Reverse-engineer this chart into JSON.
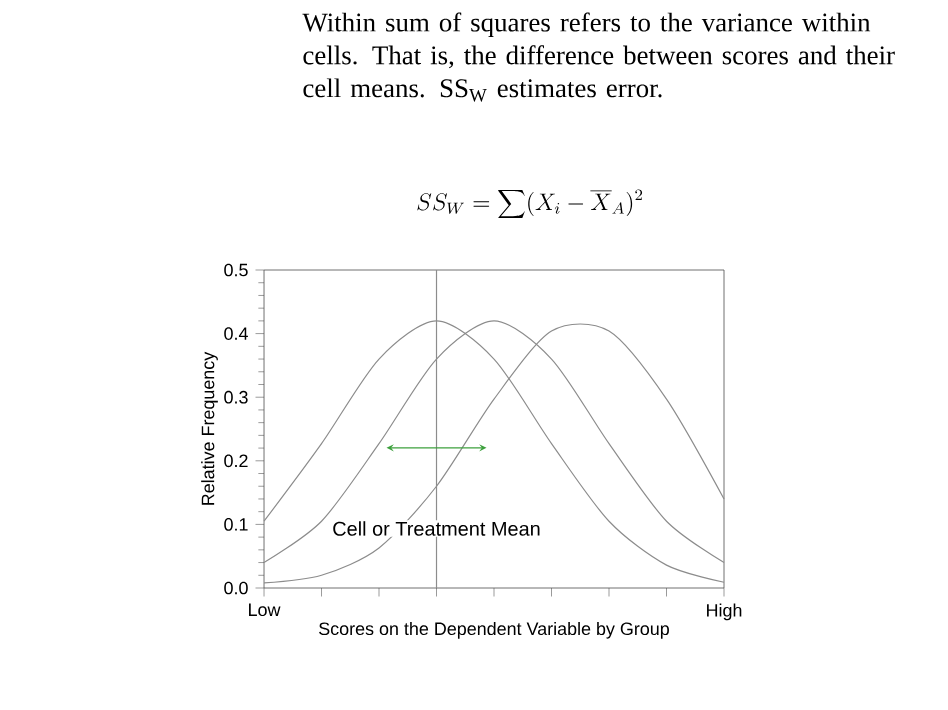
{
  "chart_data": {
    "type": "line",
    "title": "Within sum of squares refers to the variance within cells.  That is, the difference between scores and their cell means.  SS$_{W}$ estimates error.",
    "xlabel": "Scores on the Dependent Variable by Group",
    "ylabel": "Relative Frequency",
    "categories": [
      "Low",
      null,
      null,
      null,
      null,
      null,
      null,
      null,
      "High"
    ],
    "series": [
      {
        "color": "#8c8c8c",
        "values": [
          0.105,
          0.227,
          0.36,
          0.42,
          0.36,
          0.227,
          0.105,
          0.036,
          0.009
        ]
      },
      {
        "color": "#8c8c8c",
        "values": [
          0.04,
          0.105,
          0.227,
          0.36,
          0.42,
          0.36,
          0.227,
          0.105,
          0.04
        ]
      },
      {
        "color": "#8c8c8c",
        "values": [
          0.008,
          0.02,
          0.063,
          0.16,
          0.297,
          0.404,
          0.404,
          0.297,
          0.14
        ]
      }
    ],
    "ylim": [
      0,
      0.5
    ],
    "yticks": [
      {
        "value": 0,
        "label": "0.0"
      },
      {
        "value": 0.1,
        "label": "0.1"
      },
      {
        "value": 0.2,
        "label": "0.2"
      },
      {
        "value": 0.3,
        "label": "0.3"
      },
      {
        "value": 0.4,
        "label": "0.4"
      },
      {
        "value": 0.5,
        "label": "0.5"
      }
    ],
    "annotations": [
      "Cell or Treatment Mean",
      "SS_W = \\sum (X_i - \\overline{X}_A)^2"
    ],
    "marker": "none",
    "line_style": "solid"
  }
}
